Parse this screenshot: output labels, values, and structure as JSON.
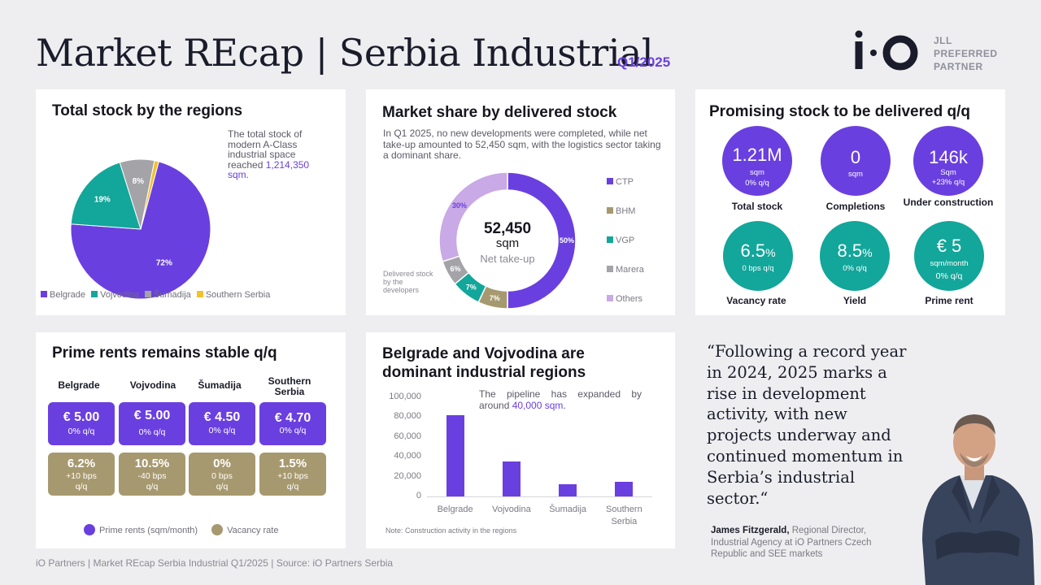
{
  "header": {
    "title": "Market REcap | Serbia Industrial",
    "quarter": "Q1/2025",
    "partner_lines": [
      "JLL",
      "PREFERRED",
      "PARTNER"
    ]
  },
  "colors": {
    "purple": "#6a3fe0",
    "teal": "#13a69a",
    "grey": "#a3a3a8",
    "yellow": "#f2c12e",
    "olive": "#a7996f",
    "lavender": "#c9a9e6"
  },
  "total_stock": {
    "title": "Total stock by the regions",
    "desc_prefix": "The total stock of modern A-Class industrial space reached ",
    "desc_value": "1,214,350 sqm.",
    "legend": [
      "Belgrade",
      "Vojvodina",
      "Šumadija",
      "Southern Serbia"
    ]
  },
  "market_share": {
    "title": "Market share by delivered stock",
    "desc": "In Q1 2025, no new developments were completed, while net take-up amounted to 52,450 sqm, with the logistics sector taking a dominant share.",
    "center_value": "52,450",
    "center_unit": "sqm",
    "center_label": "Net take-up",
    "side_note": "Delivered stock by the developers",
    "legend": [
      "CTP",
      "BHM",
      "VGP",
      "Marera",
      "Others"
    ]
  },
  "promising": {
    "title": "Promising stock to be delivered q/q",
    "kpis": [
      {
        "big": "1.21M",
        "l1": "sqm",
        "l2": "0% q/q",
        "caption": "Total stock"
      },
      {
        "big": "0",
        "l1": "sqm",
        "l2": "",
        "caption": "Completions"
      },
      {
        "big": "146k",
        "l1": "Sqm",
        "l2": "+23% q/q",
        "caption": "Under construction"
      },
      {
        "big": "6.5",
        "unit": "%",
        "l1": "0 bps q/q",
        "l2": "",
        "caption": "Vacancy rate"
      },
      {
        "big": "8.5",
        "unit": "%",
        "l1": "0% q/q",
        "l2": "",
        "caption": "Yield"
      },
      {
        "big": "€ 5",
        "l1": "sqm/month",
        "l2": "0% q/q",
        "caption": "Prime rent"
      }
    ]
  },
  "prime_rents": {
    "title": "Prime rents remains stable q/q",
    "regions": [
      {
        "name": "Belgrade",
        "rent": "€ 5.00",
        "rent_change": "0% q/q",
        "vacancy": "6.2%",
        "vac_change": "+10 bps",
        "vac_unit": "q/q"
      },
      {
        "name": "Vojvodina",
        "rent": "€ 5.00",
        "rent_change": "0% q/q",
        "vacancy": "10.5%",
        "vac_change": "-40 bps",
        "vac_unit": "q/q"
      },
      {
        "name": "Šumadija",
        "rent": "€ 4.50",
        "rent_change": "0% q/q",
        "vacancy": "0%",
        "vac_change": "0 bps",
        "vac_unit": "q/q"
      },
      {
        "name": "Southern Serbia",
        "rent": "€ 4.70",
        "rent_change": "0% q/q",
        "vacancy": "1.5%",
        "vac_change": "+10 bps",
        "vac_unit": "q/q"
      }
    ],
    "legend_rent": "Prime rents (sqm/month)",
    "legend_vacancy": "Vacancy rate"
  },
  "regions_bar": {
    "title": "Belgrade and Vojvodina are dominant industrial regions",
    "note_prefix": "The pipeline has expanded by around ",
    "note_value": "40,000 sqm.",
    "footnote": "Note: Construction activity in the regions"
  },
  "quote": {
    "text": "“Following a record year in 2024, 2025 marks a rise in development activity, with new projects underway and continued momentum in Serbia’s industrial sector.“",
    "author": "James Fitzgerald,",
    "role": "Regional Director, Industrial Agency at iO Partners Czech Republic and SEE markets"
  },
  "footer": "iO Partners | Market REcap Serbia Industrial Q1/2025 | Source: iO Partners Serbia",
  "chart_data": [
    {
      "type": "pie",
      "title": "Total stock by the regions",
      "categories": [
        "Belgrade",
        "Vojvodina",
        "Šumadija",
        "Southern Serbia"
      ],
      "values": [
        72,
        19,
        8,
        1
      ],
      "labels": [
        "72%",
        "19%",
        "8%",
        ""
      ],
      "legend": "bottom"
    },
    {
      "type": "pie",
      "title": "Market share by delivered stock",
      "categories": [
        "CTP",
        "BHM",
        "VGP",
        "Marera",
        "Others"
      ],
      "values": [
        50,
        7,
        7,
        6,
        30
      ],
      "labels": [
        "50%",
        "7%",
        "7%",
        "6%",
        "30%"
      ],
      "legend": "right"
    },
    {
      "type": "bar",
      "title": "Belgrade and Vojvodina are dominant industrial regions",
      "categories": [
        "Belgrade",
        "Vojvodina",
        "Šumadija",
        "Southern Serbia"
      ],
      "values": [
        82000,
        35500,
        12500,
        14500
      ],
      "yticks": [
        "100,000",
        "80,000",
        "60,000",
        "40,000",
        "20,000",
        "0"
      ],
      "ylim": [
        0,
        100000
      ],
      "grid": false
    }
  ]
}
